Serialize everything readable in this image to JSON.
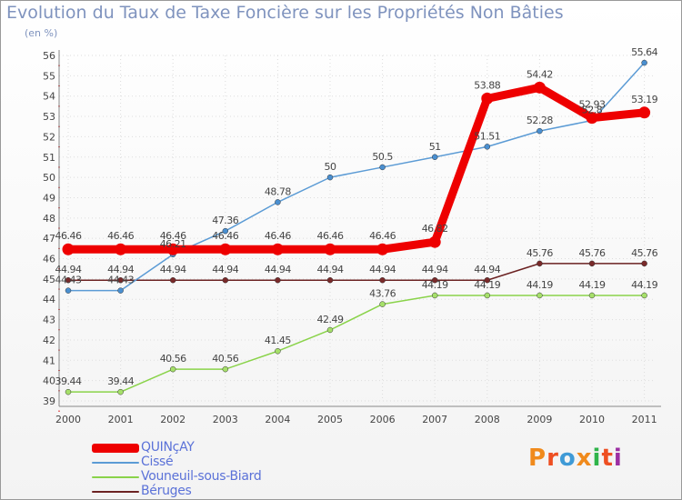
{
  "title": "Evolution du Taux de Taxe Foncière sur les Propriétés Non Bâties",
  "unit": "(en %)",
  "logo_text": "Proxiti",
  "colors": {
    "title": "#7f93be",
    "axis": "#888888",
    "grid": "#dddddd",
    "label": "#444444",
    "legend_text": "#5b72d8"
  },
  "chart_data": {
    "type": "line",
    "title": "Evolution du Taux de Taxe Foncière sur les Propriétés Non Bâties",
    "ylabel": "(en %)",
    "xlabel": "",
    "ylim": [
      39,
      56
    ],
    "yticks": [
      39,
      40,
      41,
      42,
      43,
      44,
      45,
      46,
      47,
      48,
      49,
      50,
      51,
      52,
      53,
      54,
      55,
      56
    ],
    "categories": [
      "2000",
      "2001",
      "2002",
      "2003",
      "2004",
      "2005",
      "2006",
      "2007",
      "2008",
      "2009",
      "2010",
      "2011"
    ],
    "series": [
      {
        "name": "Vouneuil-sous-Biard",
        "color": "#8ad34a",
        "marker": "#a6e06a",
        "values": [
          39.44,
          39.44,
          40.56,
          40.56,
          41.45,
          42.49,
          43.76,
          44.19,
          44.19,
          44.19,
          44.19,
          44.19
        ],
        "labels": [
          "39.44",
          "39.44",
          "40.56",
          "40.56",
          "41.45",
          "42.49",
          "43.76",
          "44.19",
          "44.19",
          "44.19",
          "44.19",
          "44.19"
        ]
      },
      {
        "name": "Béruges",
        "color": "#6b2222",
        "marker": "#7a2a2a",
        "values": [
          44.94,
          44.94,
          44.94,
          44.94,
          44.94,
          44.94,
          44.94,
          44.94,
          44.94,
          45.76,
          45.76,
          45.76
        ],
        "labels": [
          "44.94",
          "44.94",
          "44.94",
          "44.94",
          "44.94",
          "44.94",
          "44.94",
          "44.94",
          "44.94",
          "45.76",
          "45.76",
          "45.76"
        ]
      },
      {
        "name": "Cissé",
        "color": "#5b9bd5",
        "marker": "#4a8fd0",
        "values": [
          44.43,
          44.43,
          46.21,
          47.36,
          48.78,
          50,
          50.5,
          51,
          51.51,
          52.28,
          52.8,
          55.64
        ],
        "labels": [
          "44.43",
          "44.43",
          "46.21",
          "47.36",
          "48.78",
          "50",
          "50.5",
          "51",
          "51.51",
          "52.28",
          "52.8",
          "55.64"
        ]
      },
      {
        "name": "QUINçAY",
        "color": "#ee0000",
        "marker": "#ee0000",
        "values": [
          46.46,
          46.46,
          46.46,
          46.46,
          46.46,
          46.46,
          46.46,
          46.82,
          53.88,
          54.42,
          52.93,
          53.19
        ],
        "labels": [
          "46.46",
          "46.46",
          "46.46",
          "46.46",
          "46.46",
          "46.46",
          "46.46",
          "46.82",
          "53.88",
          "54.42",
          "52.93",
          "53.19"
        ]
      }
    ],
    "legend": [
      "QUINçAY",
      "Cissé",
      "Vouneuil-sous-Biard",
      "Béruges"
    ],
    "legend_position": "bottom-left",
    "grid": true
  }
}
